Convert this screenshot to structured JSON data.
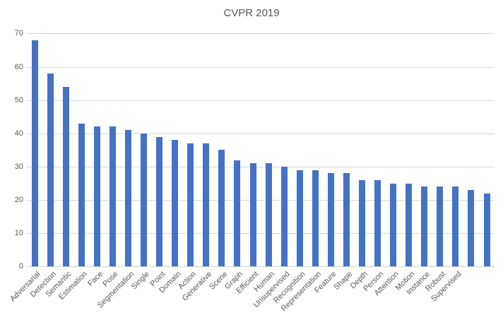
{
  "chart_data": {
    "type": "bar",
    "title": "CVPR 2019",
    "categories": [
      "Adversarial",
      "Detection",
      "Semantic",
      "Estimation",
      "Face",
      "Pose",
      "Segmentation",
      "Single",
      "Point",
      "Domain",
      "Action",
      "Generative",
      "Scene",
      "Graph",
      "Efficient",
      "Human",
      "Unsupervised",
      "Recognition",
      "Representation",
      "Feature",
      "Shape",
      "Depth",
      "Person",
      "Attention",
      "Motion",
      "Instance",
      "Robust",
      "Supervised",
      "",
      ""
    ],
    "values": [
      68,
      58,
      54,
      43,
      42,
      42,
      41,
      40,
      39,
      38,
      37,
      37,
      35,
      32,
      31,
      31,
      30,
      29,
      29,
      28,
      28,
      26,
      26,
      25,
      25,
      24,
      24,
      24,
      23,
      22
    ],
    "xlabel": "",
    "ylabel": "",
    "ylim": [
      0,
      70
    ],
    "yticks": [
      0,
      10,
      20,
      30,
      40,
      50,
      60,
      70
    ],
    "grid": true,
    "legend_position": "none",
    "bar_color": "#4472C4",
    "gridline_color": "#D9D9D9",
    "axis_text_color": "#595959",
    "title_color": "#595959"
  }
}
